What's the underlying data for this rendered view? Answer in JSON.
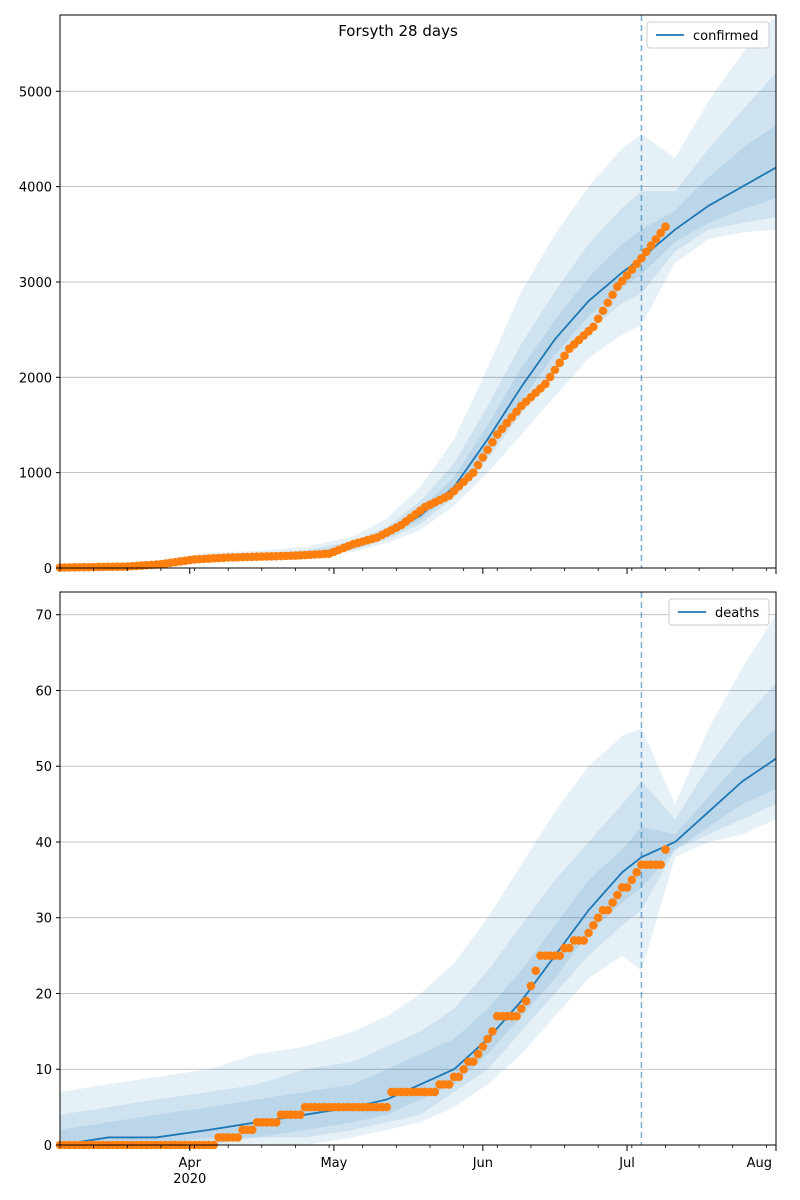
{
  "figure": {
    "title": "Forsyth 28 days",
    "colors": {
      "model_line": "#1f77b4",
      "observed_points": "#ff7f0e",
      "band": "#1f77b4",
      "grid": "#b0b0b0",
      "forecast_line": "#1f77b4"
    }
  },
  "chart_data": [
    {
      "type": "line",
      "name": "confirmed-panel",
      "legend": "confirmed",
      "legend_position": "top-right",
      "grid": "horizontal",
      "x_axis": {
        "type": "date",
        "range": [
          "2020-03-05",
          "2020-08-01"
        ],
        "major_ticks": [
          {
            "date": "2020-04-01",
            "label": "Apr",
            "sublabel": "2020"
          },
          {
            "date": "2020-05-01",
            "label": "May"
          },
          {
            "date": "2020-06-01",
            "label": "Jun"
          },
          {
            "date": "2020-07-01",
            "label": "Jul"
          },
          {
            "date": "2020-08-01",
            "label": "Aug"
          }
        ],
        "show_labels": false
      },
      "ylim": [
        0,
        5800
      ],
      "y_ticks": [
        0,
        1000,
        2000,
        3000,
        4000,
        5000
      ],
      "forecast_start": "2020-07-04",
      "model": {
        "dates": [
          "2020-03-05",
          "2020-03-15",
          "2020-03-25",
          "2020-04-05",
          "2020-04-15",
          "2020-04-25",
          "2020-05-05",
          "2020-05-12",
          "2020-05-19",
          "2020-05-26",
          "2020-06-02",
          "2020-06-09",
          "2020-06-16",
          "2020-06-23",
          "2020-06-30",
          "2020-07-04",
          "2020-07-11",
          "2020-07-18",
          "2020-07-25",
          "2020-08-01"
        ],
        "median": [
          10,
          20,
          40,
          100,
          120,
          140,
          220,
          350,
          550,
          850,
          1350,
          1900,
          2400,
          2800,
          3100,
          3250,
          3550,
          3800,
          4000,
          4200
        ],
        "bands": [
          {
            "lower": [
              0,
              5,
              20,
              60,
              90,
              110,
              170,
              260,
              400,
              650,
              1000,
              1400,
              1800,
              2200,
              2450,
              2550,
              3200,
              3450,
              3520,
              3550
            ],
            "upper": [
              20,
              40,
              80,
              160,
              180,
              220,
              330,
              520,
              850,
              1350,
              2100,
              2900,
              3500,
              4000,
              4400,
              4550,
              4300,
              4900,
              5400,
              5800
            ]
          },
          {
            "lower": [
              3,
              10,
              25,
              75,
              100,
              120,
              190,
              300,
              460,
              740,
              1150,
              1620,
              2080,
              2480,
              2780,
              2880,
              3320,
              3550,
              3620,
              3680
            ],
            "upper": [
              16,
              32,
              60,
              130,
              150,
              185,
              280,
              430,
              700,
              1100,
              1700,
              2350,
              2900,
              3400,
              3780,
              3950,
              3950,
              4400,
              4800,
              5200
            ]
          },
          {
            "lower": [
              6,
              14,
              30,
              85,
              108,
              130,
              205,
              325,
              505,
              800,
              1250,
              1760,
              2240,
              2640,
              2940,
              3080,
              3420,
              3620,
              3760,
              3880
            ],
            "upper": [
              13,
              26,
              50,
              115,
              135,
              160,
              250,
              390,
              620,
              950,
              1500,
              2100,
              2600,
              3050,
              3400,
              3550,
              3750,
              4100,
              4400,
              4650
            ]
          }
        ]
      },
      "observed": {
        "dates": [
          "2020-03-05",
          "2020-03-12",
          "2020-03-19",
          "2020-03-26",
          "2020-04-02",
          "2020-04-09",
          "2020-04-16",
          "2020-04-23",
          "2020-04-30",
          "2020-05-05",
          "2020-05-10",
          "2020-05-15",
          "2020-05-20",
          "2020-05-25",
          "2020-05-30",
          "2020-06-04",
          "2020-06-09",
          "2020-06-14",
          "2020-06-19",
          "2020-06-24",
          "2020-06-29",
          "2020-07-04",
          "2020-07-09"
        ],
        "values": [
          5,
          10,
          15,
          40,
          90,
          110,
          120,
          130,
          150,
          250,
          320,
          450,
          640,
          760,
          1000,
          1400,
          1700,
          1930,
          2300,
          2530,
          2950,
          3250,
          3580
        ]
      }
    },
    {
      "type": "line",
      "name": "deaths-panel",
      "legend": "deaths",
      "legend_position": "top-right",
      "grid": "horizontal",
      "x_axis": {
        "type": "date",
        "range": [
          "2020-03-05",
          "2020-08-01"
        ],
        "major_ticks": [
          {
            "date": "2020-04-01",
            "label": "Apr",
            "sublabel": "2020"
          },
          {
            "date": "2020-05-01",
            "label": "May"
          },
          {
            "date": "2020-06-01",
            "label": "Jun"
          },
          {
            "date": "2020-07-01",
            "label": "Jul"
          },
          {
            "date": "2020-08-01",
            "label": "Aug"
          }
        ],
        "show_labels": true
      },
      "ylim": [
        0,
        73
      ],
      "y_ticks": [
        0,
        10,
        20,
        30,
        40,
        50,
        60,
        70
      ],
      "forecast_start": "2020-07-04",
      "model": {
        "dates": [
          "2020-03-05",
          "2020-03-15",
          "2020-03-25",
          "2020-04-05",
          "2020-04-15",
          "2020-04-25",
          "2020-05-05",
          "2020-05-12",
          "2020-05-19",
          "2020-05-26",
          "2020-06-02",
          "2020-06-09",
          "2020-06-16",
          "2020-06-23",
          "2020-06-30",
          "2020-07-04",
          "2020-07-11",
          "2020-07-18",
          "2020-07-25",
          "2020-08-01"
        ],
        "median": [
          0,
          1,
          1,
          2,
          3,
          4,
          5,
          6,
          8,
          10,
          14,
          19,
          25,
          31,
          36,
          38,
          40,
          44,
          48,
          51
        ],
        "bands": [
          {
            "lower": [
              0,
              0,
              0,
              0,
              0,
              0,
              1,
              2,
              3,
              5,
              8,
              12,
              17,
              22,
              25,
              23,
              38,
              40,
              41,
              43
            ],
            "upper": [
              7,
              8,
              9,
              10,
              12,
              13,
              15,
              17,
              20,
              24,
              30,
              37,
              44,
              50,
              54,
              55,
              45,
              55,
              63,
              70
            ]
          },
          {
            "lower": [
              0,
              0,
              0,
              0,
              1,
              1,
              2,
              3,
              4,
              7,
              10,
              15,
              20,
              25,
              29,
              31,
              39,
              41,
              43,
              45
            ],
            "upper": [
              4,
              5,
              6,
              7,
              8,
              10,
              11,
              13,
              15,
              18,
              23,
              29,
              35,
              40,
              45,
              48,
              43,
              50,
              56,
              61
            ]
          },
          {
            "lower": [
              0,
              0,
              0,
              1,
              1,
              2,
              3,
              4,
              6,
              8,
              12,
              17,
              22,
              28,
              32,
              34,
              39,
              42,
              45,
              47
            ],
            "upper": [
              2,
              3,
              4,
              5,
              6,
              7,
              8,
              10,
              12,
              14,
              18,
              23,
              29,
              35,
              39,
              42,
              41,
              46,
              51,
              55
            ]
          }
        ]
      },
      "observed": {
        "dates": [
          "2020-03-05",
          "2020-03-15",
          "2020-03-25",
          "2020-03-31",
          "2020-04-07",
          "2020-04-12",
          "2020-04-15",
          "2020-04-20",
          "2020-04-25",
          "2020-05-01",
          "2020-05-06",
          "2020-05-12",
          "2020-05-13",
          "2020-05-20",
          "2020-05-26",
          "2020-05-29",
          "2020-06-01",
          "2020-06-04",
          "2020-06-09",
          "2020-06-13",
          "2020-06-16",
          "2020-06-20",
          "2020-06-23",
          "2020-06-26",
          "2020-06-30",
          "2020-07-04",
          "2020-07-08",
          "2020-07-09"
        ],
        "values": [
          0,
          0,
          0,
          0,
          1,
          2,
          3,
          4,
          5,
          5,
          5,
          5,
          7,
          7,
          9,
          11,
          13,
          17,
          18,
          25,
          25,
          27,
          28,
          31,
          34,
          37,
          37,
          39
        ]
      }
    }
  ]
}
